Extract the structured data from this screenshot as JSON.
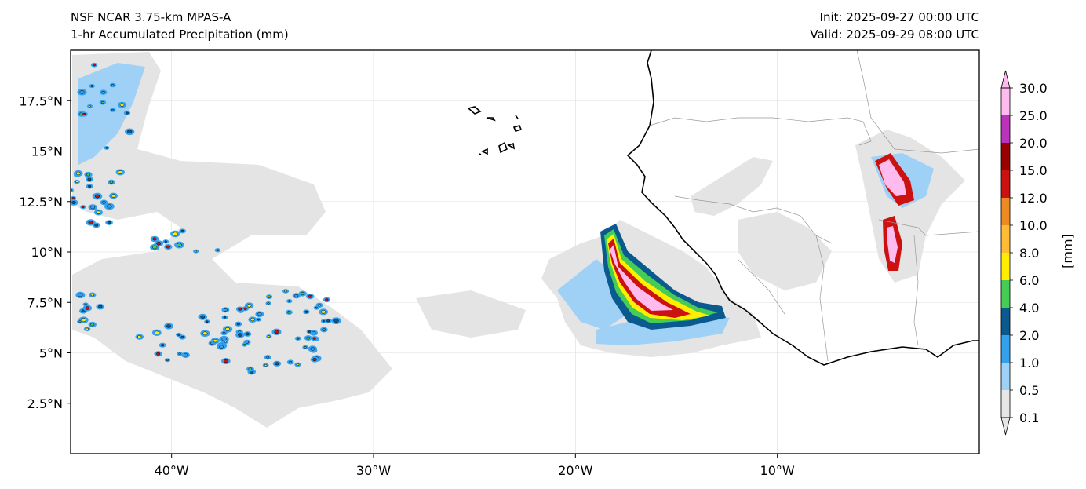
{
  "header": {
    "model_name": "NSF NCAR 3.75-km MPAS-A",
    "field_name": "1-hr Accumulated Precipitation (mm)",
    "init_time": "Init: 2025-09-27 00:00 UTC",
    "valid_time": "Valid: 2025-09-29 08:00 UTC"
  },
  "map": {
    "lon_range": [
      -45,
      0
    ],
    "lat_range": [
      0,
      20
    ],
    "lon_ticks": [
      {
        "value": -40,
        "label": "40°W"
      },
      {
        "value": -30,
        "label": "30°W"
      },
      {
        "value": -20,
        "label": "20°W"
      },
      {
        "value": -10,
        "label": "10°W"
      }
    ],
    "lat_ticks": [
      {
        "value": 17.5,
        "label": "17.5°N"
      },
      {
        "value": 15,
        "label": "15°N"
      },
      {
        "value": 12.5,
        "label": "12.5°N"
      },
      {
        "value": 10,
        "label": "10°N"
      },
      {
        "value": 7.5,
        "label": "7.5°N"
      },
      {
        "value": 5,
        "label": "5°N"
      },
      {
        "value": 2.5,
        "label": "2.5°N"
      }
    ],
    "gridlines": true
  },
  "colorbar": {
    "unit_label": "[mm]",
    "levels": [
      "0.1",
      "0.5",
      "1.0",
      "2.0",
      "4.0",
      "6.0",
      "8.0",
      "10.0",
      "12.0",
      "15.0",
      "20.0",
      "25.0",
      "30.0"
    ],
    "colors": [
      "#e6e6e6",
      "#9fd0f5",
      "#33a1ee",
      "#0a5a90",
      "#44cc55",
      "#ffee00",
      "#ffbb33",
      "#ee8a22",
      "#cc1111",
      "#990000",
      "#bb33bb",
      "#ffbbee"
    ],
    "extend": "both"
  }
}
